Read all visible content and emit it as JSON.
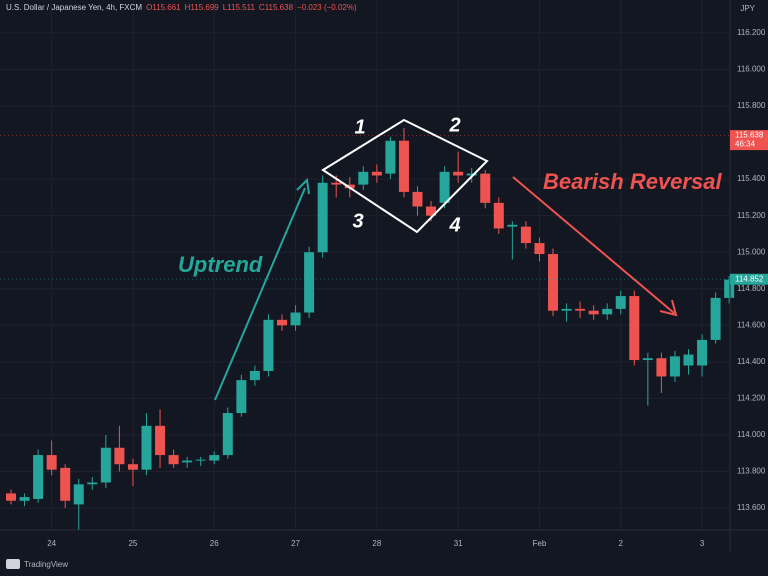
{
  "chart_data": {
    "type": "candlestick",
    "header": [
      "U.S. Dollar / Japanese Yen, 4h, FXCM",
      "O115.661",
      "H115.699",
      "L115.511",
      "C115.638",
      "−0.023 (−0.02%)"
    ],
    "currency": "JPY",
    "categories": [
      null,
      null,
      null,
      "24",
      null,
      null,
      null,
      null,
      null,
      "25",
      null,
      null,
      null,
      null,
      null,
      "26",
      null,
      null,
      null,
      null,
      null,
      "27",
      null,
      null,
      null,
      null,
      null,
      "28",
      null,
      null,
      null,
      null,
      null,
      "31",
      null,
      null,
      null,
      null,
      null,
      "Feb",
      null,
      null,
      null,
      null,
      null,
      "2",
      null,
      null,
      null,
      null,
      null,
      "3",
      null,
      null
    ],
    "open": [
      113.68,
      113.64,
      113.65,
      113.89,
      113.82,
      113.62,
      113.73,
      113.74,
      113.93,
      113.84,
      113.81,
      114.05,
      113.89,
      113.85,
      113.86,
      113.86,
      113.89,
      114.12,
      114.3,
      114.35,
      114.63,
      114.6,
      114.67,
      115.0,
      115.38,
      115.37,
      115.37,
      115.44,
      115.43,
      115.61,
      115.33,
      115.25,
      115.27,
      115.44,
      115.42,
      115.43,
      115.27,
      115.14,
      115.14,
      115.05,
      114.99,
      114.68,
      114.69,
      114.68,
      114.66,
      114.69,
      114.76,
      114.41,
      114.42,
      114.32,
      114.38,
      114.38,
      114.52,
      114.75
    ],
    "high": [
      113.7,
      113.68,
      113.92,
      113.97,
      113.84,
      113.76,
      113.77,
      114.0,
      114.05,
      113.87,
      114.12,
      114.14,
      113.92,
      113.88,
      113.88,
      113.91,
      114.15,
      114.33,
      114.38,
      114.66,
      114.66,
      114.71,
      115.03,
      115.42,
      115.42,
      115.41,
      115.47,
      115.48,
      115.63,
      115.68,
      115.36,
      115.28,
      115.47,
      115.55,
      115.46,
      115.45,
      115.3,
      115.17,
      115.17,
      115.08,
      115.02,
      114.72,
      114.73,
      114.71,
      114.72,
      114.79,
      114.79,
      114.45,
      114.45,
      114.46,
      114.47,
      114.55,
      114.78,
      114.87
    ],
    "low": [
      113.62,
      113.61,
      113.63,
      113.78,
      113.6,
      113.48,
      113.7,
      113.71,
      113.8,
      113.72,
      113.78,
      113.82,
      113.82,
      113.82,
      113.83,
      113.84,
      113.87,
      114.1,
      114.27,
      114.32,
      114.57,
      114.57,
      114.64,
      114.97,
      115.3,
      115.3,
      115.34,
      115.38,
      115.4,
      115.3,
      115.2,
      115.17,
      115.24,
      115.38,
      115.38,
      115.24,
      115.1,
      114.96,
      115.02,
      114.95,
      114.65,
      114.62,
      114.64,
      114.63,
      114.63,
      114.66,
      114.38,
      114.16,
      114.23,
      114.29,
      114.33,
      114.32,
      114.5,
      114.72
    ],
    "close": [
      113.64,
      113.66,
      113.89,
      113.81,
      113.64,
      113.73,
      113.74,
      113.93,
      113.84,
      113.81,
      114.05,
      113.89,
      113.84,
      113.86,
      113.865,
      113.89,
      114.12,
      114.3,
      114.35,
      114.63,
      114.6,
      114.67,
      115.0,
      115.38,
      115.37,
      115.35,
      115.44,
      115.42,
      115.61,
      115.33,
      115.25,
      115.2,
      115.44,
      115.42,
      115.43,
      115.27,
      115.13,
      115.15,
      115.05,
      114.99,
      114.68,
      114.69,
      114.68,
      114.66,
      114.69,
      114.76,
      114.41,
      114.42,
      114.32,
      114.43,
      114.44,
      114.52,
      114.75,
      114.85
    ],
    "up_color": "#26a69a",
    "down_color": "#ef5350",
    "ylim": [
      113.48,
      116.38
    ],
    "yticks": [
      {
        "value": 113.6,
        "label": "113.600"
      },
      {
        "value": 113.8,
        "label": "113.800"
      },
      {
        "value": 114.0,
        "label": "114.000"
      },
      {
        "value": 114.2,
        "label": "114.200"
      },
      {
        "value": 114.4,
        "label": "114.400"
      },
      {
        "value": 114.6,
        "label": "114.600"
      },
      {
        "value": 114.8,
        "label": "114.800"
      },
      {
        "value": 115.0,
        "label": "115.000"
      },
      {
        "value": 115.2,
        "label": "115.200"
      },
      {
        "value": 115.4,
        "label": "115.400"
      },
      {
        "value": 115.8,
        "label": "115.800"
      },
      {
        "value": 116.0,
        "label": "116.000"
      },
      {
        "value": 116.2,
        "label": "116.200"
      }
    ],
    "price_tags": [
      {
        "value": 115.638,
        "label": "115.638",
        "color": "#ef5350",
        "countdown": "46:34"
      },
      {
        "value": 114.852,
        "label": "114.852",
        "color": "#26a69a"
      }
    ],
    "annotations": {
      "uptrend": "Uptrend",
      "reversal": "Bearish Reversal",
      "p1": "1",
      "p2": "2",
      "p3": "3",
      "p4": "4"
    },
    "grid": true,
    "footer": "TradingView"
  }
}
